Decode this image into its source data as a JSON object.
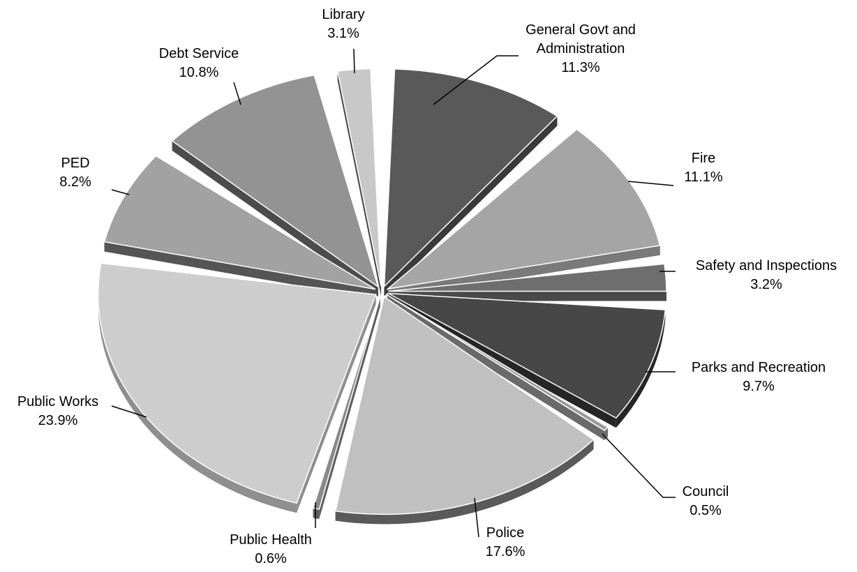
{
  "chart_data": {
    "type": "pie",
    "style": "3d-exploded",
    "title": "",
    "legend": "none",
    "slices": [
      {
        "label_lines": [
          "General Govt and",
          "Administration"
        ],
        "value_label": "11.3%",
        "value": 11.3,
        "color": "#595959",
        "side_color": "#3a3a3a"
      },
      {
        "label_lines": [
          "Fire"
        ],
        "value_label": "11.1%",
        "value": 11.1,
        "color": "#a5a5a5",
        "side_color": "#7a7a7a"
      },
      {
        "label_lines": [
          "Safety and Inspections"
        ],
        "value_label": "3.2%",
        "value": 3.2,
        "color": "#6e6e6e",
        "side_color": "#4a4a4a"
      },
      {
        "label_lines": [
          "Parks and Recreation"
        ],
        "value_label": "9.7%",
        "value": 9.7,
        "color": "#474747",
        "side_color": "#262626"
      },
      {
        "label_lines": [
          "Council"
        ],
        "value_label": "0.5%",
        "value": 0.5,
        "color": "#9a9a9a",
        "side_color": "#6a6a6a"
      },
      {
        "label_lines": [
          "Police"
        ],
        "value_label": "17.6%",
        "value": 17.6,
        "color": "#c0c0c0",
        "side_color": "#5a5a5a"
      },
      {
        "label_lines": [
          "Public Health"
        ],
        "value_label": "0.6%",
        "value": 0.6,
        "color": "#8a8a8a",
        "side_color": "#5e5e5e"
      },
      {
        "label_lines": [
          "Public Works"
        ],
        "value_label": "23.9%",
        "value": 23.9,
        "color": "#cdcdcd",
        "side_color": "#8f8f8f"
      },
      {
        "label_lines": [
          "PED"
        ],
        "value_label": "8.2%",
        "value": 8.2,
        "color": "#a2a2a2",
        "side_color": "#555555"
      },
      {
        "label_lines": [
          "Debt Service"
        ],
        "value_label": "10.8%",
        "value": 10.8,
        "color": "#939393",
        "side_color": "#4c4c4c"
      },
      {
        "label_lines": [
          "Library"
        ],
        "value_label": "3.1%",
        "value": 3.1,
        "color": "#c8c8c8",
        "side_color": "#444444"
      }
    ]
  }
}
